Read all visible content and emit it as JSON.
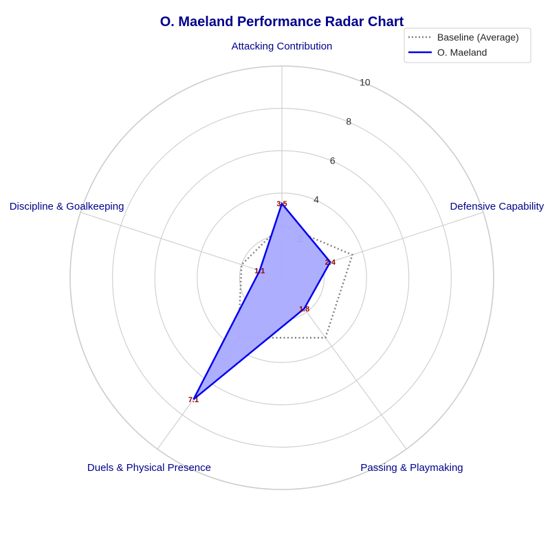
{
  "chart_data": {
    "type": "radar",
    "title": "O. Maeland Performance Radar Chart",
    "axes": [
      "Attacking Contribution",
      "Defensive Capability",
      "Passing & Playmaking",
      "Duels & Physical Presence",
      "Discipline & Goalkeeping"
    ],
    "rlim": [
      0,
      10
    ],
    "rticks": [
      2,
      4,
      6,
      8,
      10
    ],
    "grid": true,
    "legend_position": "top-right",
    "series": [
      {
        "name": "Baseline (Average)",
        "values": [
          2.5,
          3.5,
          3.5,
          3.5,
          2.0
        ],
        "color": "#808080",
        "style": "dotted"
      },
      {
        "name": "O. Maeland",
        "values": [
          3.5,
          2.4,
          1.8,
          7.1,
          1.1
        ],
        "value_labels": [
          "3.5",
          "2.4",
          "1.8",
          "7.1",
          "1.1"
        ],
        "color": "#0000ee",
        "fill": "#aaaaff",
        "style": "solid"
      }
    ]
  }
}
